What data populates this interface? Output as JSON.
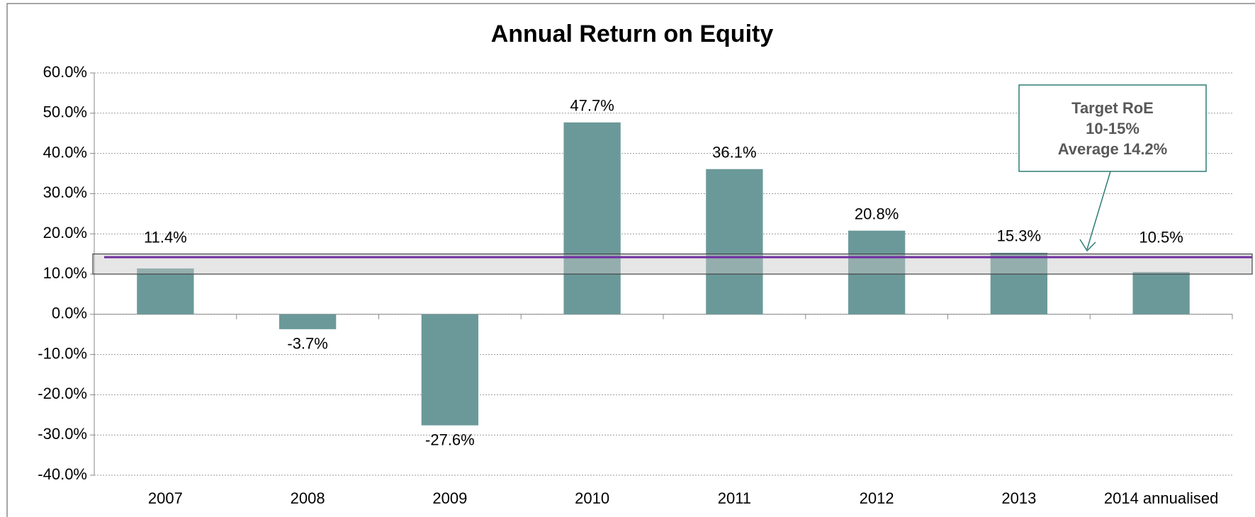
{
  "chart_data": {
    "type": "bar",
    "title": "Annual Return on Equity",
    "categories": [
      "2007",
      "2008",
      "2009",
      "2010",
      "2011",
      "2012",
      "2013",
      "2014 annualised"
    ],
    "values": [
      11.4,
      -3.7,
      -27.6,
      47.7,
      36.1,
      20.8,
      15.3,
      10.5
    ],
    "value_labels": [
      "11.4%",
      "-3.7%",
      "-27.6%",
      "47.7%",
      "36.1%",
      "20.8%",
      "15.3%",
      "10.5%"
    ],
    "color": "#6b9999",
    "ylim": [
      -40,
      60
    ],
    "yticks": [
      {
        "value": -40,
        "label": "-40.0%"
      },
      {
        "value": -30,
        "label": "-30.0%"
      },
      {
        "value": -20,
        "label": "-20.0%"
      },
      {
        "value": -10,
        "label": "-10.0%"
      },
      {
        "value": 0,
        "label": "0.0%"
      },
      {
        "value": 10,
        "label": "10.0%"
      },
      {
        "value": 20,
        "label": "20.0%"
      },
      {
        "value": 30,
        "label": "30.0%"
      },
      {
        "value": 40,
        "label": "40.0%"
      },
      {
        "value": 50,
        "label": "50.0%"
      },
      {
        "value": 60,
        "label": "60.0%"
      }
    ],
    "grid": true,
    "target_range": [
      10,
      15
    ],
    "average": 14.2,
    "average_color": "#7030a0",
    "annotation": [
      "Target RoE",
      "10-15%",
      "Average 14.2%"
    ]
  }
}
